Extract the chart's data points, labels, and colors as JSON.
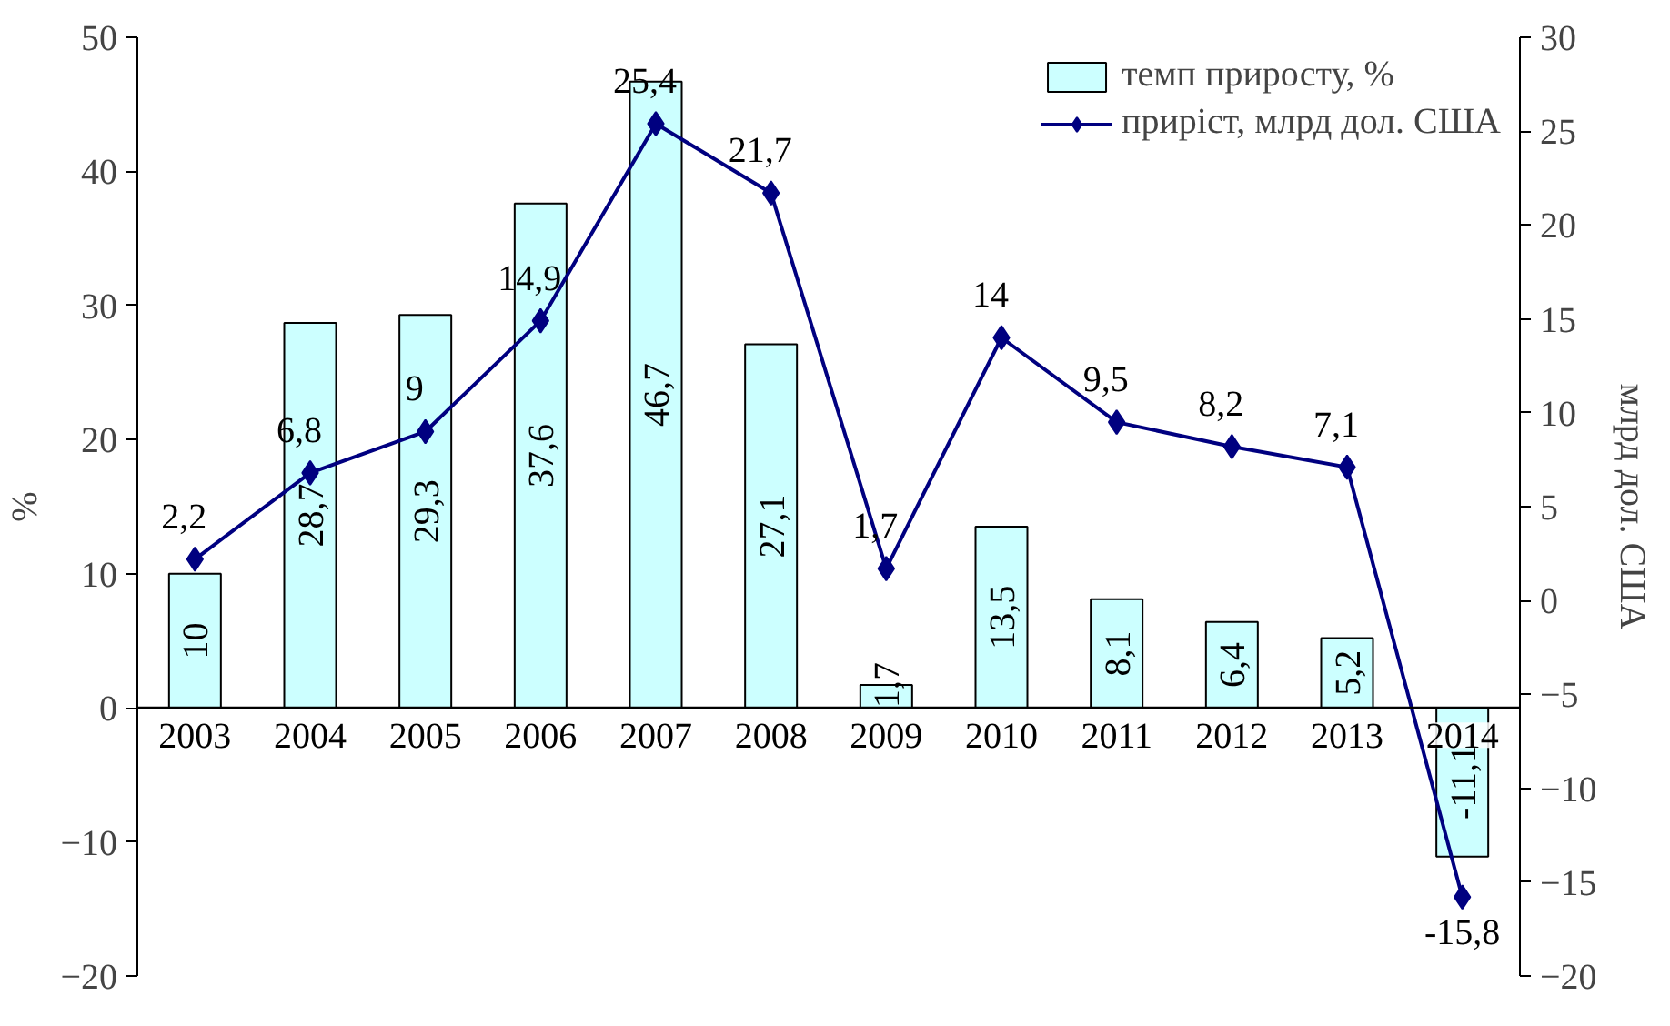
{
  "chart_data": {
    "type": "bar",
    "categories": [
      "2003",
      "2004",
      "2005",
      "2006",
      "2007",
      "2008",
      "2009",
      "2010",
      "2011",
      "2012",
      "2013",
      "2014"
    ],
    "ylabel": "%",
    "y2label": "млрд дол. США",
    "ylim": [
      -20,
      50
    ],
    "yticks": [
      -20,
      -10,
      0,
      10,
      20,
      30,
      40,
      50
    ],
    "y2lim": [
      -20,
      30
    ],
    "y2ticks": [
      -20,
      -15,
      -10,
      -5,
      0,
      5,
      10,
      15,
      20,
      25,
      30
    ],
    "grid": false,
    "legend": "top right",
    "series": [
      {
        "name": "темп приросту, %",
        "color": "#ccffff",
        "values": [
          10,
          28.7,
          29.3,
          37.6,
          46.7,
          27.1,
          1.7,
          13.5,
          8.1,
          6.4,
          5.2,
          -11.1
        ],
        "value_labels": [
          "10",
          "28,7",
          "29,3",
          "37,6",
          "46,7",
          "27,1",
          "1,7",
          "13,5",
          "8,1",
          "6,4",
          "5,2",
          "-11,1"
        ]
      },
      {
        "name": "приріст, млрд дол. США",
        "type": "line",
        "axis": "y2",
        "color": "#000080",
        "marker": "diamond",
        "values": [
          2.2,
          6.8,
          9,
          14.9,
          25.4,
          21.7,
          1.7,
          14,
          9.5,
          8.2,
          7.1,
          -15.8
        ],
        "value_labels": [
          "2,2",
          "6,8",
          "9",
          "14,9",
          "25,4",
          "21,7",
          "1,7",
          "14",
          "9,5",
          "8,2",
          "7,1",
          "-15,8"
        ]
      }
    ]
  }
}
